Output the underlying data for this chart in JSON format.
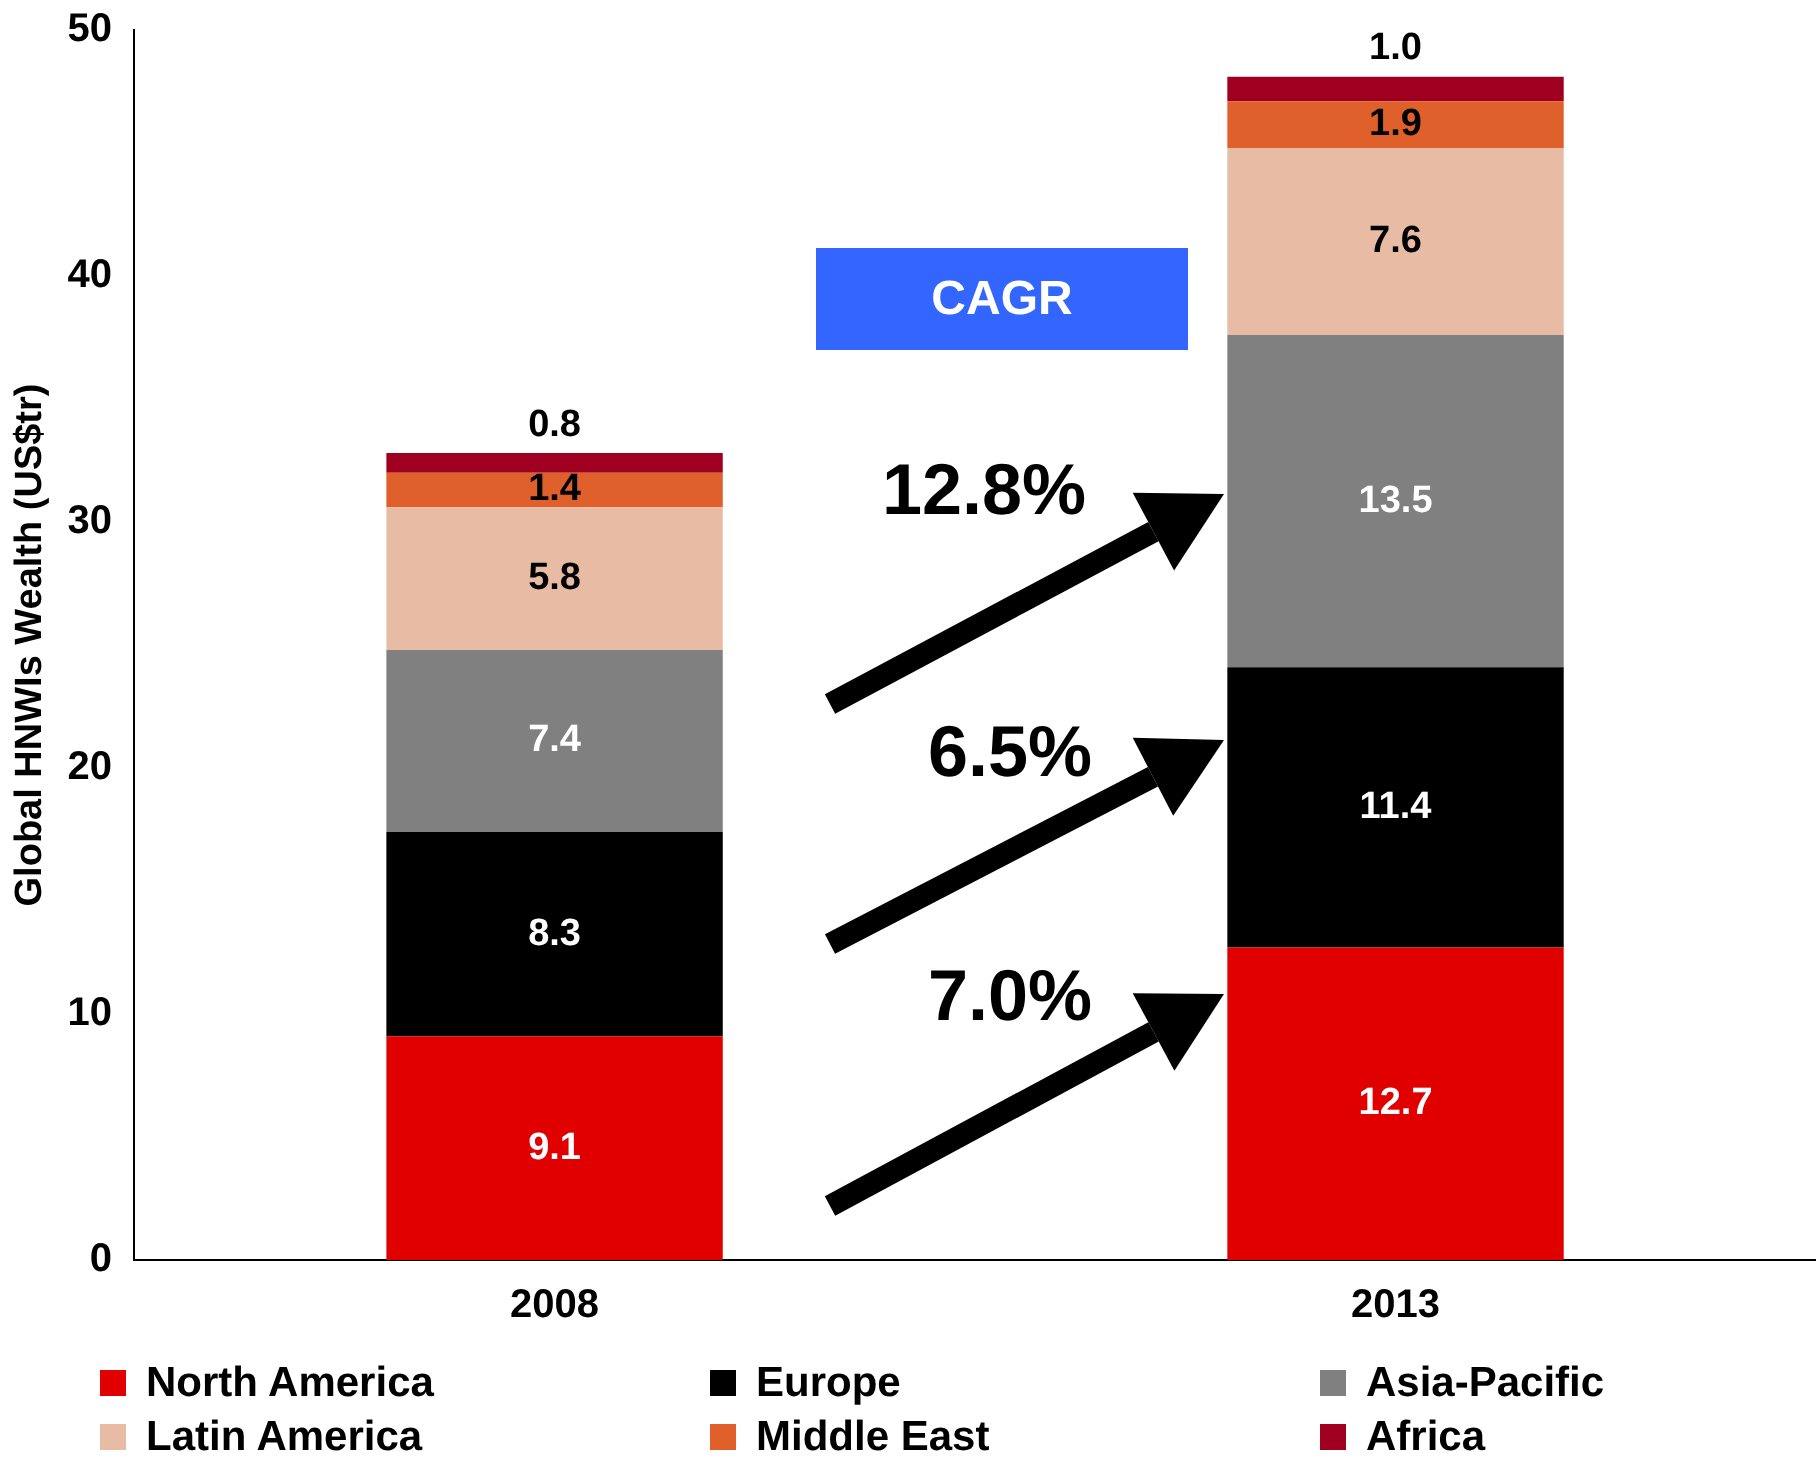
{
  "chart_data": {
    "type": "bar",
    "stacked": true,
    "ylabel": "Global HNWIs Wealth (US$tr)",
    "categories": [
      "2008",
      "2013"
    ],
    "series": [
      {
        "name": "North America",
        "color": "#e00000",
        "values": [
          9.1,
          12.7
        ],
        "value_labels": [
          "9.1",
          "12.7"
        ]
      },
      {
        "name": "Europe",
        "color": "#000000",
        "values": [
          8.3,
          11.4
        ],
        "value_labels": [
          "8.3",
          "11.4"
        ]
      },
      {
        "name": "Asia-Pacific",
        "color": "#808080",
        "values": [
          7.4,
          13.5
        ],
        "value_labels": [
          "7.4",
          "13.5"
        ]
      },
      {
        "name": "Latin America",
        "color": "#e8bca4",
        "values": [
          5.8,
          7.6
        ],
        "value_labels": [
          "5.8",
          "7.6"
        ]
      },
      {
        "name": "Middle East",
        "color": "#e0602c",
        "values": [
          1.4,
          1.9
        ],
        "value_labels": [
          "1.4",
          "1.9"
        ]
      },
      {
        "name": "Africa",
        "color": "#a00020",
        "values": [
          0.8,
          1.0
        ],
        "value_labels": [
          "0.8",
          "1.0"
        ]
      }
    ],
    "ylim": [
      0,
      50
    ],
    "yticks": [
      0,
      10,
      20,
      30,
      40,
      50
    ],
    "legend": "bottom",
    "annotations": [
      "CAGR",
      "12.8%",
      "6.5%",
      "7.0%"
    ]
  }
}
